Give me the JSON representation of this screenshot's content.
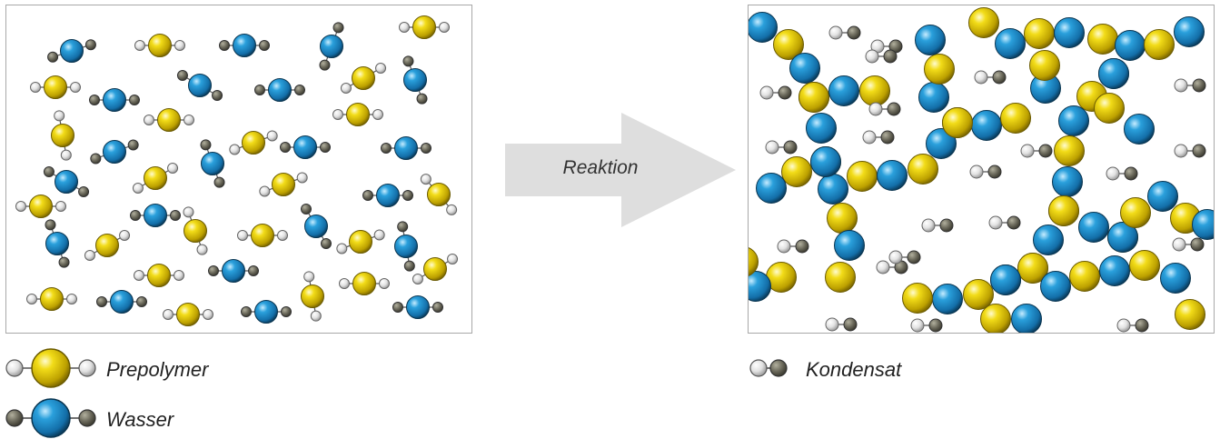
{
  "arrow": {
    "label": "Reaktion"
  },
  "legend": {
    "prepolymer": "Prepolymer",
    "wasser": "Wasser",
    "kondensat": "Kondensat"
  },
  "colors": {
    "yellow": "#e3c400",
    "blue": "#1c88c4",
    "white_atom": "#e6e6e6",
    "dark_atom": "#6c6a5c",
    "arrow": "#dedede",
    "border": "#a8a8a8"
  }
}
